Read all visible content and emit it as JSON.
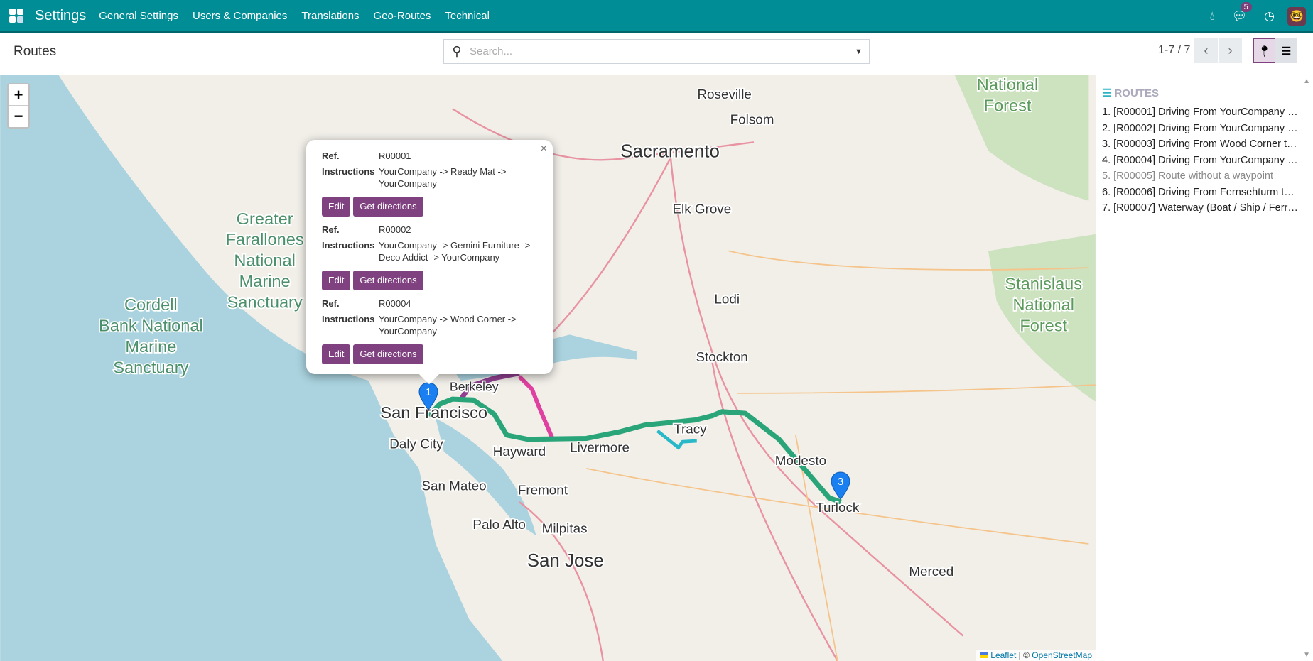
{
  "nav": {
    "app": "Settings",
    "menus": [
      "General Settings",
      "Users & Companies",
      "Translations",
      "Geo-Routes",
      "Technical"
    ],
    "messages_count": "5"
  },
  "control": {
    "title": "Routes",
    "search_placeholder": "Search...",
    "pager": "1-7 / 7"
  },
  "map": {
    "zoom_in": "+",
    "zoom_out": "−",
    "labels": [
      {
        "t": "National",
        "c": "#5a9a5a"
      },
      {
        "t": "Forest",
        "c": "#5a9a5a"
      },
      {
        "t": "Roseville",
        "c": "#333"
      },
      {
        "t": "Folsom",
        "c": "#333"
      },
      {
        "t": "Sacramento",
        "c": "#333"
      },
      {
        "t": "Elk Grove",
        "c": "#333"
      },
      {
        "t": "Greater",
        "c": "#4b8f6b"
      },
      {
        "t": "Farallones",
        "c": "#4b8f6b"
      },
      {
        "t": "National",
        "c": "#4b8f6b"
      },
      {
        "t": "Marine",
        "c": "#4b8f6b"
      },
      {
        "t": "Sanctuary",
        "c": "#4b8f6b"
      },
      {
        "t": "Cordell",
        "c": "#4b8f6b"
      },
      {
        "t": "Bank National",
        "c": "#4b8f6b"
      },
      {
        "t": "Marine",
        "c": "#4b8f6b"
      },
      {
        "t": "Sanctuary",
        "c": "#4b8f6b"
      },
      {
        "t": "Lodi",
        "c": "#333"
      },
      {
        "t": "Stockton",
        "c": "#333"
      },
      {
        "t": "Stanislaus",
        "c": "#5a9a5a"
      },
      {
        "t": "National",
        "c": "#5a9a5a"
      },
      {
        "t": "Forest",
        "c": "#5a9a5a"
      },
      {
        "t": "Berkeley",
        "c": "#333"
      },
      {
        "t": "San Francisco",
        "c": "#333"
      },
      {
        "t": "Daly City",
        "c": "#333"
      },
      {
        "t": "Hayward",
        "c": "#333"
      },
      {
        "t": "Livermore",
        "c": "#333"
      },
      {
        "t": "Tracy",
        "c": "#333"
      },
      {
        "t": "Modesto",
        "c": "#333"
      },
      {
        "t": "San Mateo",
        "c": "#333"
      },
      {
        "t": "Fremont",
        "c": "#333"
      },
      {
        "t": "Turlock",
        "c": "#333"
      },
      {
        "t": "Palo Alto",
        "c": "#333"
      },
      {
        "t": "Milpitas",
        "c": "#333"
      },
      {
        "t": "San Jose",
        "c": "#333"
      },
      {
        "t": "Merced",
        "c": "#333"
      }
    ],
    "markers": [
      "1",
      "3"
    ],
    "route_colors": [
      "#2aa57a",
      "#28b8c8",
      "#8e3f8e",
      "#e040a0"
    ],
    "attribution": {
      "leaflet": "Leaflet",
      "sep": " | © ",
      "osm": "OpenStreetMap"
    }
  },
  "popup": {
    "records": [
      {
        "ref_label": "Ref.",
        "ref": "R00001",
        "instr_label": "Instructions",
        "instr": "YourCompany -> Ready Mat -> YourCompany",
        "edit": "Edit",
        "directions": "Get directions"
      },
      {
        "ref_label": "Ref.",
        "ref": "R00002",
        "instr_label": "Instructions",
        "instr": "YourCompany -> Gemini Furniture -> Deco Addict -> YourCompany",
        "edit": "Edit",
        "directions": "Get directions"
      },
      {
        "ref_label": "Ref.",
        "ref": "R00004",
        "instr_label": "Instructions",
        "instr": "YourCompany -> Wood Corner -> YourCompany",
        "edit": "Edit",
        "directions": "Get directions"
      }
    ]
  },
  "sidebar": {
    "heading": "ROUTES",
    "items": [
      "1. [R00001] Driving From YourCompany …",
      "2. [R00002] Driving From YourCompany …",
      "3. [R00003] Driving From Wood Corner t…",
      "4. [R00004] Driving From YourCompany …",
      "5. [R00005] Route without a waypoint",
      "6. [R00006] Driving From Fernsehturm t…",
      "7. [R00007] Waterway (Boat / Ship / Ferr…"
    ]
  }
}
